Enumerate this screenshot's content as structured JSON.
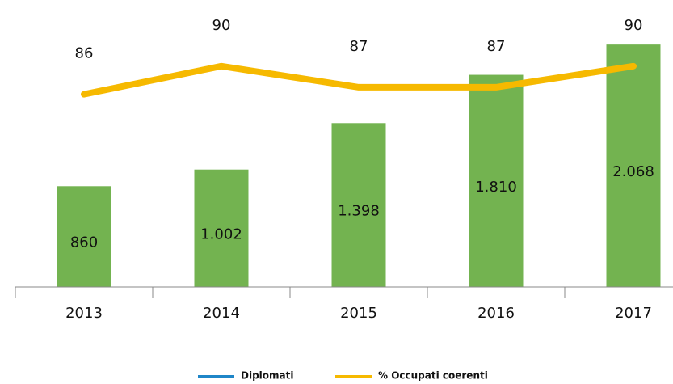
{
  "chart_data": {
    "type": "bar-line",
    "categories": [
      "2013",
      "2014",
      "2015",
      "2016",
      "2017"
    ],
    "series": [
      {
        "name": "Diplomati",
        "type": "bar",
        "color": "#73b350",
        "legend_color": "#1f86c8",
        "values": [
          860,
          1002,
          1398,
          1810,
          2068
        ],
        "value_labels": [
          "860",
          "1.002",
          "1.398",
          "1.810",
          "2.068"
        ]
      },
      {
        "name": "% Occupati coerenti",
        "type": "line",
        "axis": "y2",
        "color": "#f6b900",
        "values": [
          86,
          90,
          87,
          87,
          90
        ]
      }
    ],
    "ylim": [
      0,
      2400
    ],
    "y2lim": [
      58.6,
      98.6
    ]
  }
}
